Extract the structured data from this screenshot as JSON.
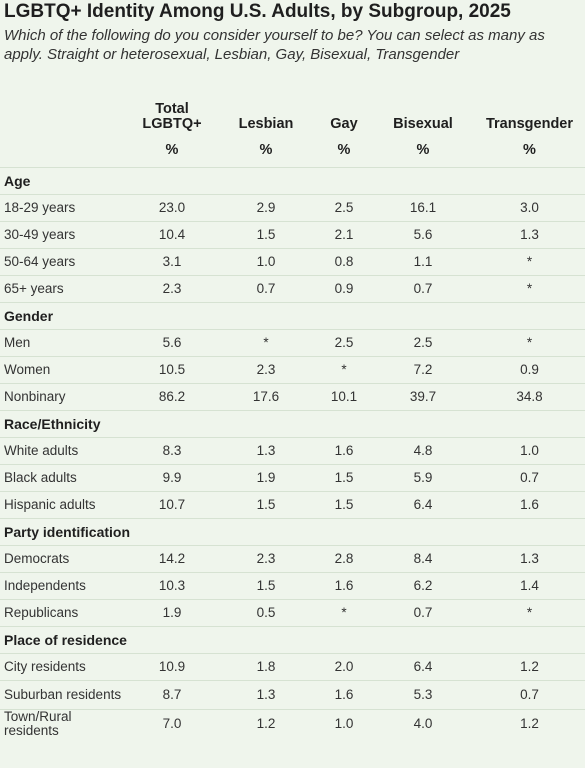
{
  "title": "LGBTQ+ Identity Among U.S. Adults, by Subgroup, 2025",
  "subtitle": "Which of the following do you consider yourself to be? You can select as many as apply. Straight or heterosexual, Lesbian, Gay, Bisexual, Transgender",
  "chart_data": {
    "type": "table",
    "columns": [
      "Total LGBTQ+",
      "Lesbian",
      "Gay",
      "Bisexual",
      "Transgender"
    ],
    "unit_row": [
      "%",
      "%",
      "%",
      "%",
      "%"
    ],
    "sections": [
      {
        "name": "Age",
        "rows": [
          {
            "label": "18-29 years",
            "values": [
              "23.0",
              "2.9",
              "2.5",
              "16.1",
              "3.0"
            ]
          },
          {
            "label": "30-49 years",
            "values": [
              "10.4",
              "1.5",
              "2.1",
              "5.6",
              "1.3"
            ]
          },
          {
            "label": "50-64 years",
            "values": [
              "3.1",
              "1.0",
              "0.8",
              "1.1",
              "*"
            ]
          },
          {
            "label": "65+ years",
            "values": [
              "2.3",
              "0.7",
              "0.9",
              "0.7",
              "*"
            ]
          }
        ]
      },
      {
        "name": "Gender",
        "rows": [
          {
            "label": "Men",
            "values": [
              "5.6",
              "*",
              "2.5",
              "2.5",
              "*"
            ]
          },
          {
            "label": "Women",
            "values": [
              "10.5",
              "2.3",
              "*",
              "7.2",
              "0.9"
            ]
          },
          {
            "label": "Nonbinary",
            "values": [
              "86.2",
              "17.6",
              "10.1",
              "39.7",
              "34.8"
            ]
          }
        ]
      },
      {
        "name": "Race/Ethnicity",
        "rows": [
          {
            "label": "White adults",
            "values": [
              "8.3",
              "1.3",
              "1.6",
              "4.8",
              "1.0"
            ]
          },
          {
            "label": "Black adults",
            "values": [
              "9.9",
              "1.9",
              "1.5",
              "5.9",
              "0.7"
            ]
          },
          {
            "label": "Hispanic adults",
            "values": [
              "10.7",
              "1.5",
              "1.5",
              "6.4",
              "1.6"
            ]
          }
        ]
      },
      {
        "name": "Party identification",
        "rows": [
          {
            "label": "Democrats",
            "values": [
              "14.2",
              "2.3",
              "2.8",
              "8.4",
              "1.3"
            ]
          },
          {
            "label": "Independents",
            "values": [
              "10.3",
              "1.5",
              "1.6",
              "6.2",
              "1.4"
            ]
          },
          {
            "label": "Republicans",
            "values": [
              "1.9",
              "0.5",
              "*",
              "0.7",
              "*"
            ]
          }
        ]
      },
      {
        "name": "Place of residence",
        "rows": [
          {
            "label": "City residents",
            "values": [
              "10.9",
              "1.8",
              "2.0",
              "6.4",
              "1.2"
            ]
          },
          {
            "label": "Suburban residents",
            "values": [
              "8.7",
              "1.3",
              "1.6",
              "5.3",
              "0.7"
            ]
          },
          {
            "label": "Town/Rural residents",
            "values": [
              "7.0",
              "1.2",
              "1.0",
              "4.0",
              "1.2"
            ]
          }
        ]
      }
    ]
  }
}
